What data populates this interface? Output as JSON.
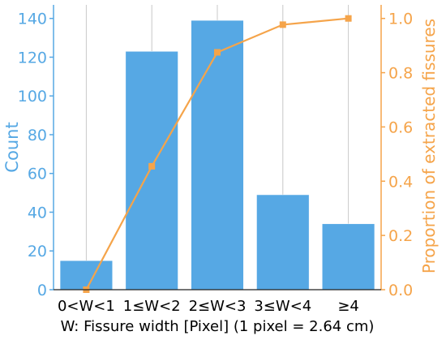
{
  "chart_data": {
    "type": "bar",
    "categories": [
      "0<W<1",
      "1≤W<2",
      "2≤W<3",
      "3≤W<4",
      "≥4"
    ],
    "series": [
      {
        "name": "Count",
        "type": "bar",
        "axis": "left",
        "color": "#56a8e4",
        "values": [
          15,
          123,
          139,
          49,
          34
        ]
      },
      {
        "name": "Proportion of extracted fissures",
        "type": "line",
        "axis": "right",
        "color": "#f5a44a",
        "values": [
          0.0,
          0.455,
          0.875,
          0.977,
          1.0
        ]
      }
    ],
    "xlabel": "W: Fissure width [Pixel]  (1 pixel = 2.64 cm)",
    "ylabel_left": "Count",
    "ylabel_right": "Proportion of extracted fissures",
    "ylim_left": [
      0,
      147
    ],
    "ylim_right": [
      0,
      1.05
    ],
    "yticks_left": [
      0,
      20,
      40,
      60,
      80,
      100,
      120,
      140
    ],
    "yticks_right": [
      "0.0",
      "0.2",
      "0.4",
      "0.6",
      "0.8",
      "1.0"
    ],
    "grid": "vertical",
    "left_color": "#56a8e4",
    "right_color": "#f5a44a"
  }
}
